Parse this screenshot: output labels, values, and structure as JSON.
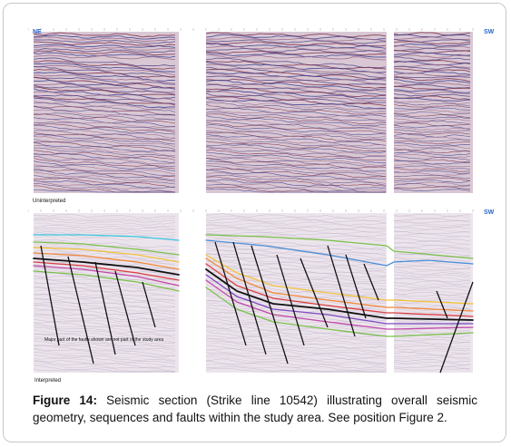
{
  "figure": {
    "label": "Figure 14:",
    "caption": " Seismic section (Strike line 10542) illustrating overall seismic geometry, sequences and faults within the study area. See position Figure 2."
  },
  "top_panel": {
    "left_direction": "NE",
    "right_direction": "SW",
    "tag": "Uninterpreted"
  },
  "bottom_panel": {
    "right_direction": "SW",
    "tag": "Interpreted",
    "note": "Major part of the faults shown are not part of the study area"
  },
  "colors": {
    "horizon_blue": "#4a8ed8",
    "horizon_cyan": "#38c8e0",
    "horizon_green": "#7ac24a",
    "horizon_yellow": "#f2c33a",
    "horizon_orange": "#f08a3a",
    "horizon_red": "#d94040",
    "horizon_magenta": "#c24aa8",
    "horizon_purple": "#7a4ac0",
    "fault": "#111111"
  }
}
